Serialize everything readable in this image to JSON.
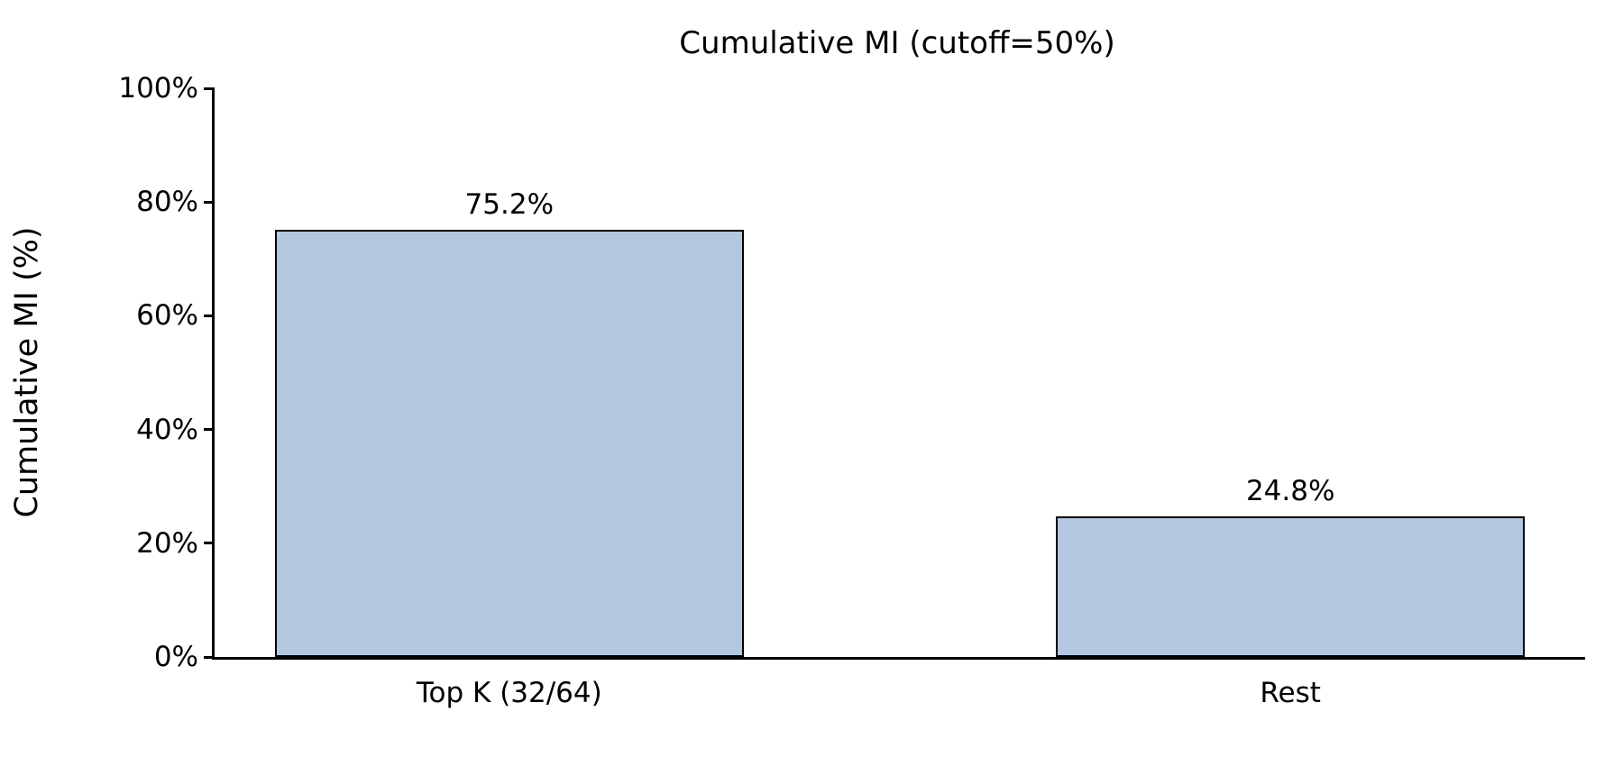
{
  "chart_data": {
    "type": "bar",
    "title": "Cumulative MI (cutoff=50%)",
    "xlabel": "",
    "ylabel": "Cumulative MI (%)",
    "categories": [
      "Top K (32/64)",
      "Rest"
    ],
    "values": [
      75.2,
      24.8
    ],
    "value_labels": [
      "75.2%",
      "24.8%"
    ],
    "ylim": [
      0,
      100
    ],
    "ytick_values": [
      0,
      20,
      40,
      60,
      80,
      100
    ],
    "ytick_labels": [
      "0%",
      "20%",
      "40%",
      "60%",
      "80%",
      "100%"
    ],
    "grid": "off",
    "legend": "none",
    "bar_fill_color": "#b4c7e0",
    "bar_edge_color": "#000000",
    "axis_color": "#000000",
    "background_color": "#ffffff"
  }
}
